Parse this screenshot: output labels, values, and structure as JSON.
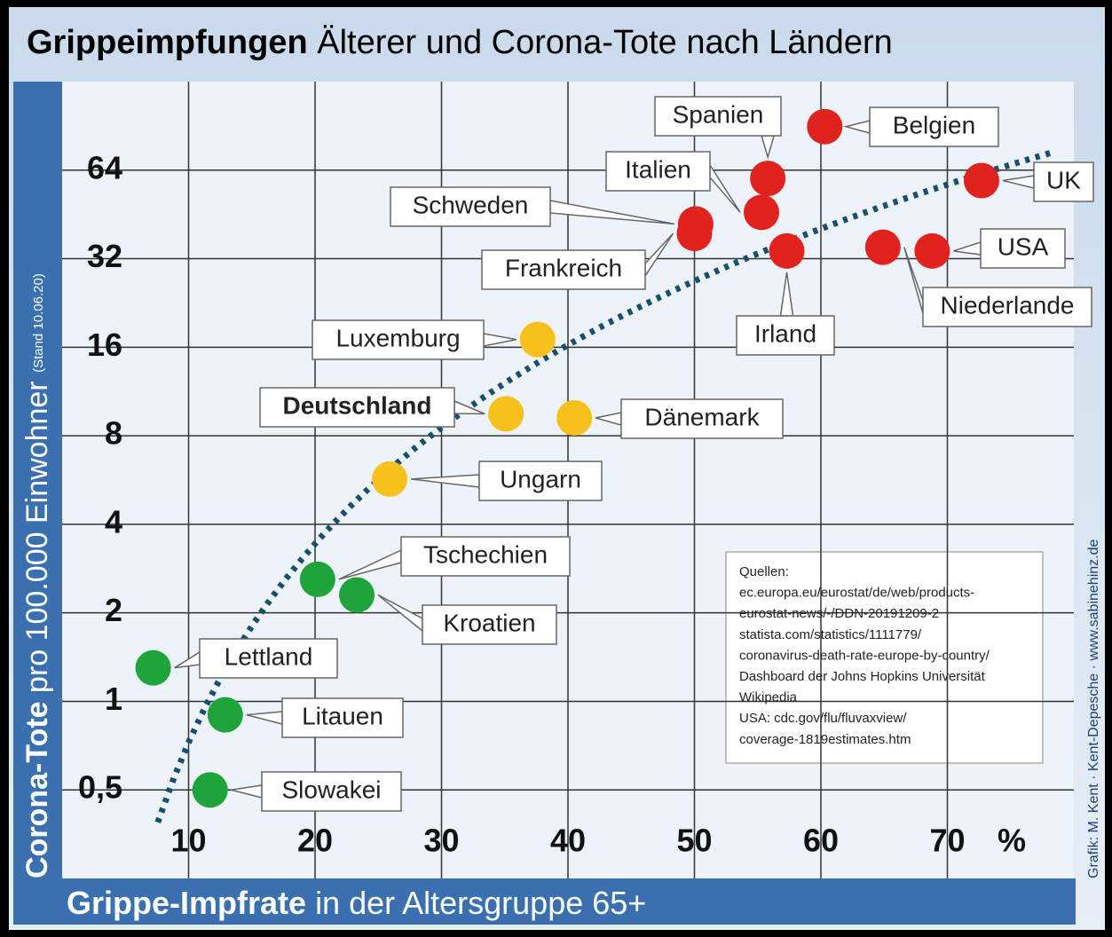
{
  "chart_data": {
    "type": "scatter",
    "title": [
      "Grippeimpfungen",
      "Älterer und Corona-Tote nach Ländern"
    ],
    "y_label": [
      "Corona-Tote",
      "pro 100.000 Einwohner",
      "(Stand 10.06.20)"
    ],
    "x_label": [
      "Grippe-Impfrate",
      "in der Altersgruppe 65+"
    ],
    "x_unit": "%",
    "credit": "Grafik: M. Kent · Kent-Depesche · www.sabinehinz.de",
    "sources": [
      "Quellen:",
      "ec.europa.eu/eurostat/de/web/products-",
      "eurostat-news/-/DDN-20191209-2",
      "statista.com/statistics/1111779/",
      "coronavirus-death-rate-europe-by-country/",
      "Dashboard der Johns Hopkins Universität",
      "Wikipedia",
      "USA: cdc.gov/flu/fluvaxview/",
      "coverage-1819estimates.htm"
    ],
    "labels": [
      "Belgien",
      "UK",
      "Spanien",
      "Italien",
      "Schweden",
      "Frankreich",
      "Irland",
      "Niederlande",
      "USA",
      "Luxemburg",
      "Deutschland",
      "Dänemark",
      "Ungarn",
      "Tschechien",
      "Kroatien",
      "Lettland",
      "Litauen",
      "Slowakei"
    ],
    "x": [
      60.3,
      72.7,
      55.8,
      55.3,
      50.1,
      50,
      57.3,
      64.9,
      68.8,
      37.6,
      35.1,
      40.5,
      25.9,
      20.2,
      23.3,
      7.2,
      12.9,
      11.7
    ],
    "values": [
      90,
      59,
      60,
      46,
      42,
      39,
      34,
      35,
      34,
      17,
      9.5,
      9.2,
      5.7,
      2.6,
      2.3,
      1.3,
      0.9,
      0.5
    ],
    "colors": [
      "#e0231c",
      "#e0231c",
      "#e0231c",
      "#e0231c",
      "#e0231c",
      "#e0231c",
      "#e0231c",
      "#e0231c",
      "#e0231c",
      "#f5c11a",
      "#f5c11a",
      "#f5c11a",
      "#f5c11a",
      "#1fa33b",
      "#1fa33b",
      "#1fa33b",
      "#1fa33b",
      "#1fa33b"
    ],
    "xlim": [
      0,
      80
    ],
    "xticks": [
      10,
      20,
      30,
      40,
      50,
      60,
      70
    ],
    "ylim": [
      0.25,
      128
    ],
    "ylog": 2,
    "yticks": [
      {
        "value": 0.5,
        "label": "0,5"
      },
      1,
      2,
      4,
      8,
      16,
      32,
      64
    ],
    "grid": true,
    "trendline": true
  }
}
